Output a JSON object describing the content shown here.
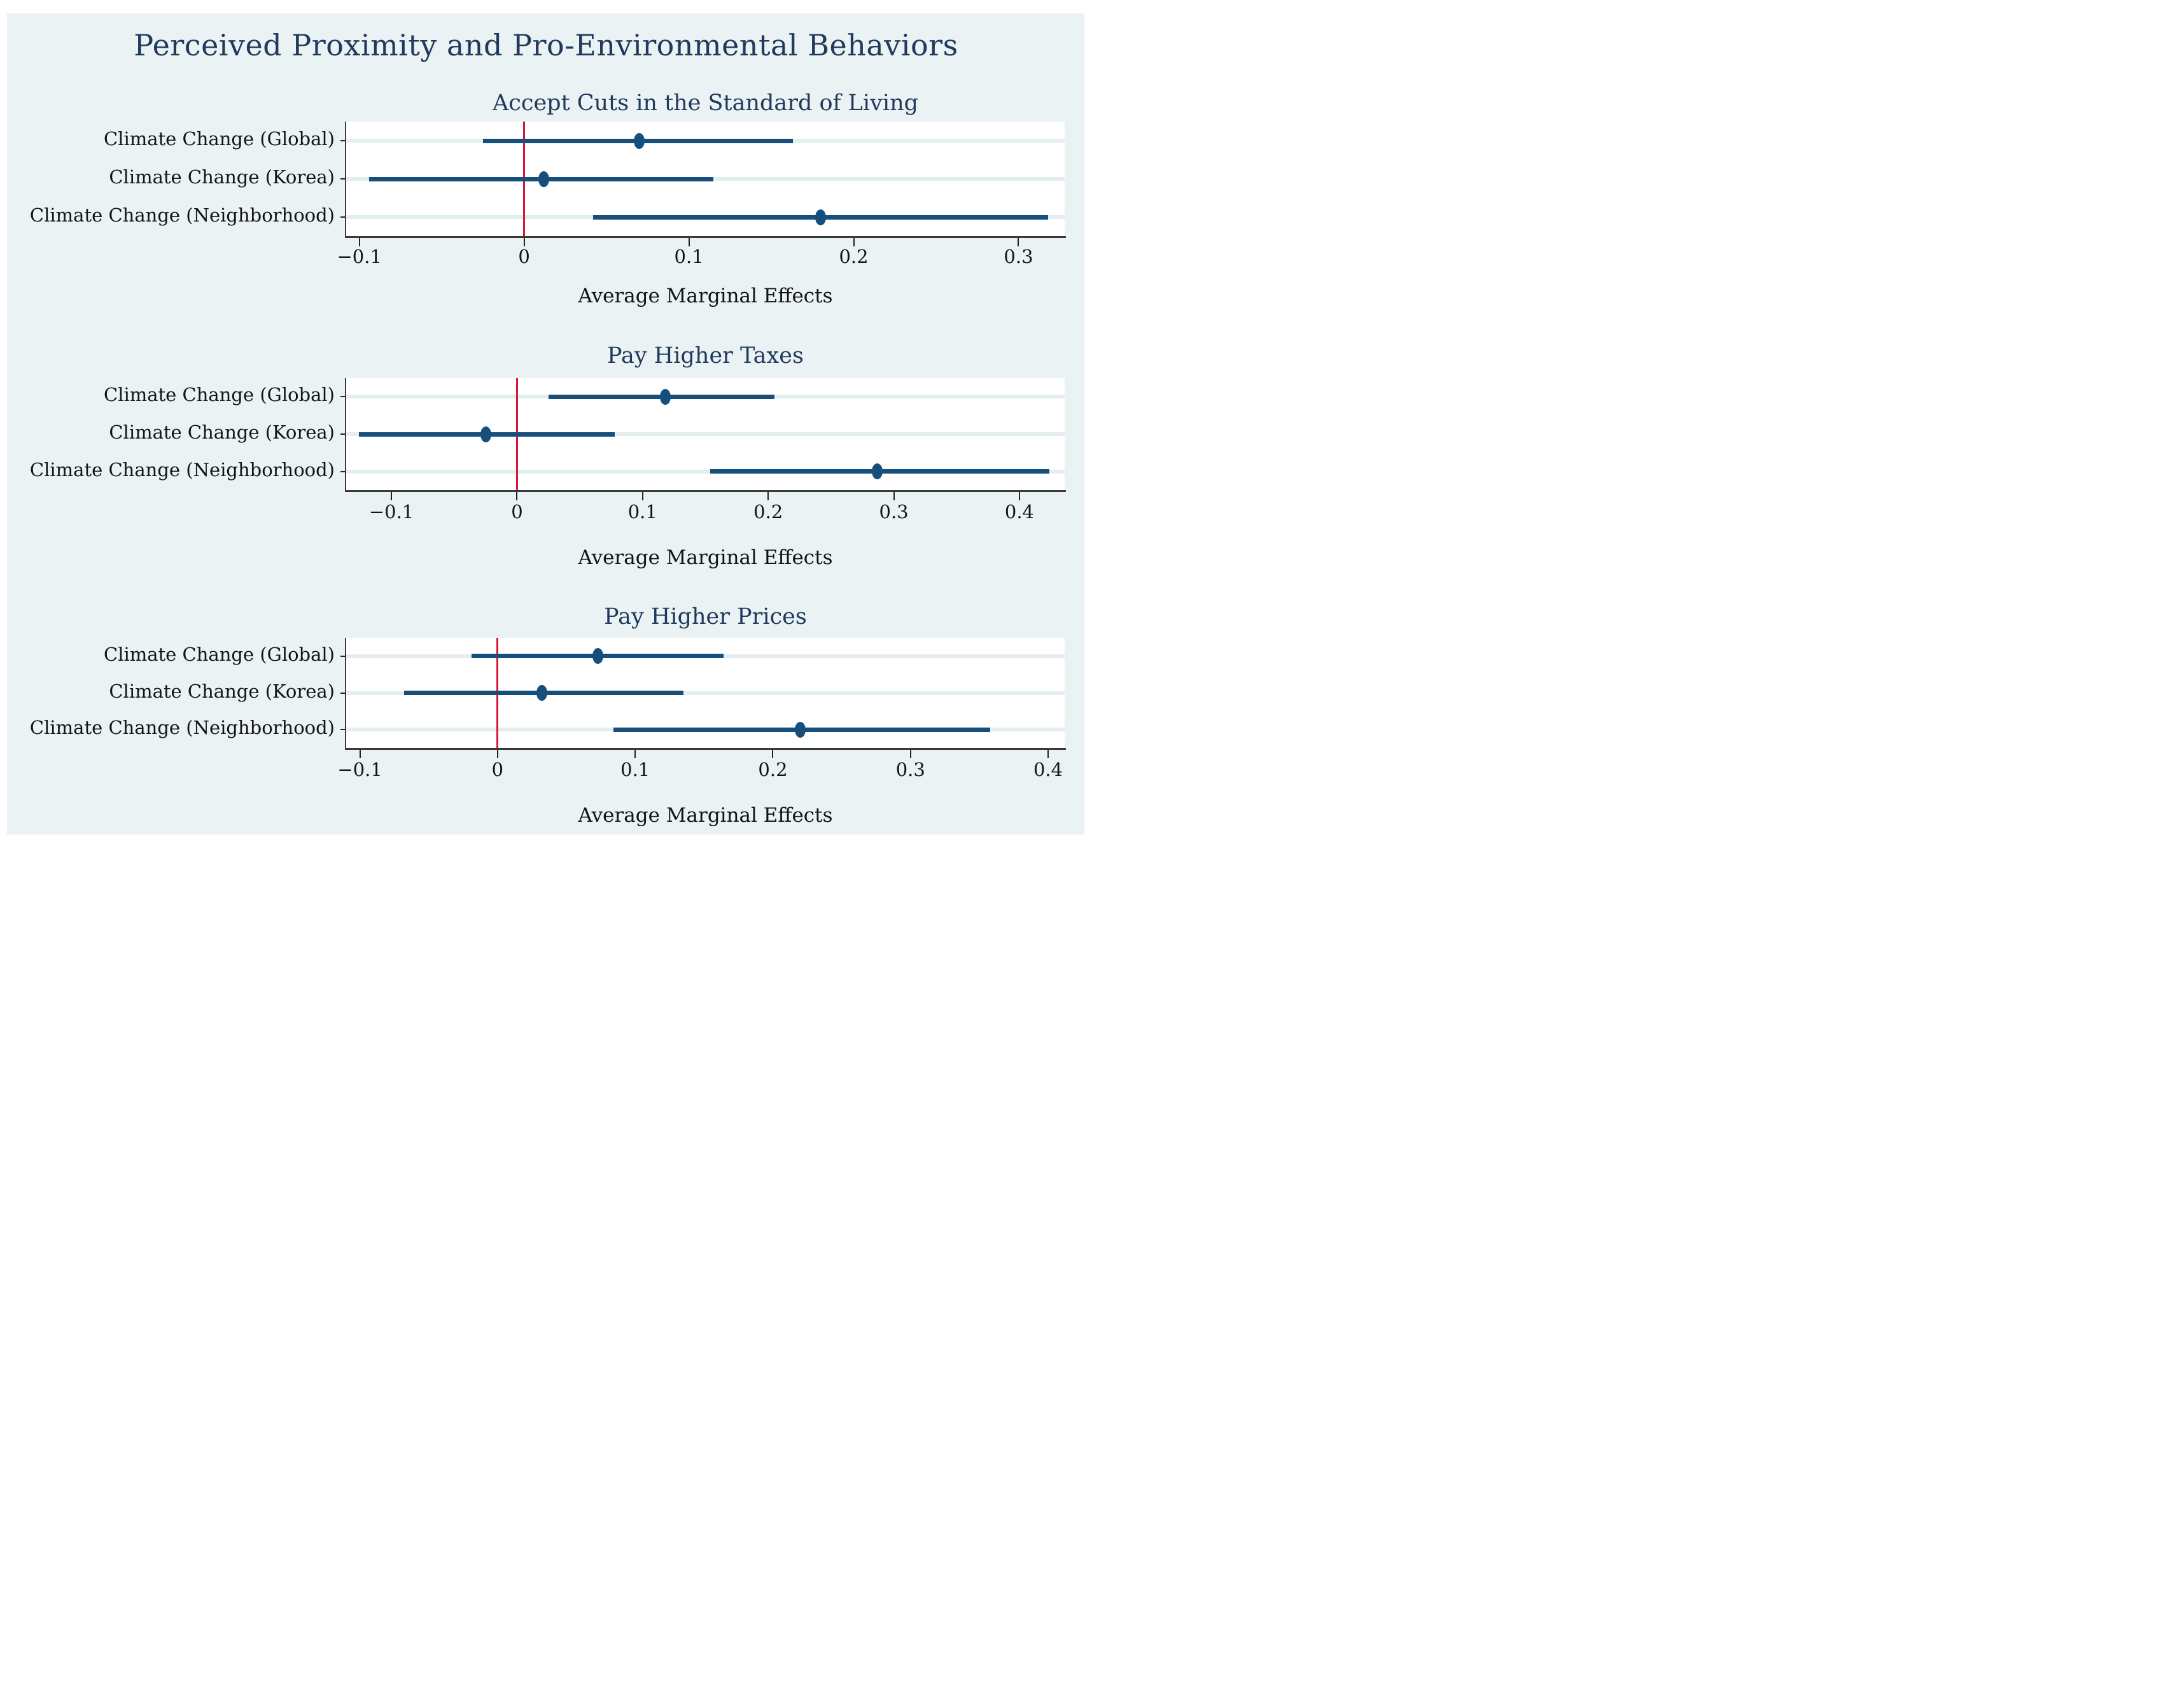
{
  "title": "Perceived Proximity and Pro-Environmental Behaviors",
  "colors": {
    "page_background": "#ffffff",
    "chart_background": "#eaf2f3",
    "plot_background": "#ffffff",
    "category_stripe": "#e3eef1",
    "estimate_navy": "#174f7c",
    "zero_line_red": "#dc143c",
    "axis_gray": "#3a3a3a",
    "title_navy": "#20395c",
    "text_black": "#141414"
  },
  "chart_data": [
    {
      "type": "scatter",
      "title": "Accept Cuts in the Standard of Living",
      "xlabel": "Average Marginal Effects",
      "legend_position": "none",
      "grid": "category-stripes",
      "zero_line": 0,
      "xlim": [
        -0.108,
        0.328
      ],
      "xtick_values": [
        -0.1,
        0,
        0.1,
        0.2,
        0.3
      ],
      "xtick_labels": [
        "−0.1",
        "0",
        "0.1",
        "0.2",
        "0.3"
      ],
      "categories": [
        "Climate Change (Global)",
        "Climate Change (Korea)",
        "Climate Change (Neighborhood)"
      ],
      "points": [
        {
          "label": "Climate Change (Global)",
          "estimate": 0.07,
          "ci_low": -0.025,
          "ci_high": 0.163
        },
        {
          "label": "Climate Change (Korea)",
          "estimate": 0.012,
          "ci_low": -0.094,
          "ci_high": 0.115
        },
        {
          "label": "Climate Change (Neighborhood)",
          "estimate": 0.18,
          "ci_low": 0.042,
          "ci_high": 0.318
        }
      ]
    },
    {
      "type": "scatter",
      "title": "Pay Higher Taxes",
      "xlabel": "Average Marginal Effects",
      "legend_position": "none",
      "grid": "category-stripes",
      "zero_line": 0,
      "xlim": [
        -0.136,
        0.436
      ],
      "xtick_values": [
        -0.1,
        0,
        0.1,
        0.2,
        0.3,
        0.4
      ],
      "xtick_labels": [
        "−0.1",
        "0",
        "0.1",
        "0.2",
        "0.3",
        "0.4"
      ],
      "categories": [
        "Climate Change (Global)",
        "Climate Change (Korea)",
        "Climate Change (Neighborhood)"
      ],
      "points": [
        {
          "label": "Climate Change (Global)",
          "estimate": 0.118,
          "ci_low": 0.025,
          "ci_high": 0.205
        },
        {
          "label": "Climate Change (Korea)",
          "estimate": -0.025,
          "ci_low": -0.126,
          "ci_high": 0.078
        },
        {
          "label": "Climate Change (Neighborhood)",
          "estimate": 0.287,
          "ci_low": 0.154,
          "ci_high": 0.424
        }
      ]
    },
    {
      "type": "scatter",
      "title": "Pay Higher Prices",
      "xlabel": "Average Marginal Effects",
      "legend_position": "none",
      "grid": "category-stripes",
      "zero_line": 0,
      "xlim": [
        -0.11,
        0.412
      ],
      "xtick_values": [
        -0.1,
        0,
        0.1,
        0.2,
        0.3,
        0.4
      ],
      "xtick_labels": [
        "−0.1",
        "0",
        "0.1",
        "0.2",
        "0.3",
        "0.4"
      ],
      "categories": [
        "Climate Change (Global)",
        "Climate Change (Korea)",
        "Climate Change (Neighborhood)"
      ],
      "points": [
        {
          "label": "Climate Change (Global)",
          "estimate": 0.073,
          "ci_low": -0.019,
          "ci_high": 0.164
        },
        {
          "label": "Climate Change (Korea)",
          "estimate": 0.032,
          "ci_low": -0.068,
          "ci_high": 0.135
        },
        {
          "label": "Climate Change (Neighborhood)",
          "estimate": 0.22,
          "ci_low": 0.084,
          "ci_high": 0.358
        }
      ]
    }
  ]
}
